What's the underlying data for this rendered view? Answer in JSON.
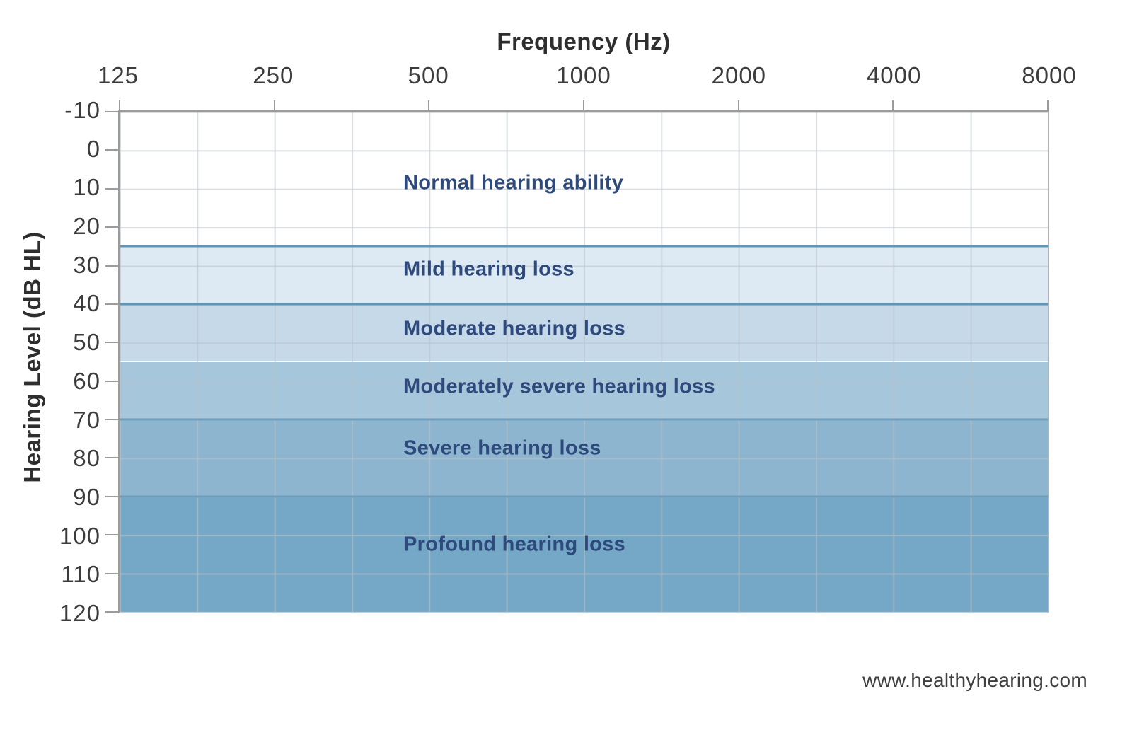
{
  "page": {
    "background": "#ffffff",
    "watermark": "www.healthyhearing.com"
  },
  "chart_data": {
    "type": "area",
    "title": "Frequency (Hz)",
    "xlabel": "Frequency (Hz)",
    "ylabel": "Hearing Level (dB HL)",
    "x_axis": {
      "position": "top",
      "scale": "octave",
      "tick_labels": [
        "125",
        "250",
        "500",
        "1000",
        "2000",
        "4000",
        "8000"
      ],
      "gridlines_per_octave": 2
    },
    "y_axis": {
      "min": -10,
      "max": 120,
      "step": 10,
      "inverted": true,
      "tick_labels": [
        "-10",
        "0",
        "10",
        "20",
        "30",
        "40",
        "50",
        "60",
        "70",
        "80",
        "90",
        "100",
        "110",
        "120"
      ]
    },
    "grid": true,
    "legend": "none",
    "label_color": "#2e4a7c",
    "axis_color": "#9b9b9b",
    "boundary_stroke_color": "#5e96b8",
    "bands": [
      {
        "label": "Normal hearing ability",
        "db_from": -10,
        "db_to": 25,
        "color": "#ffffff",
        "top_stroke": "",
        "label_db": 8.5
      },
      {
        "label": "Mild hearing loss",
        "db_from": 25,
        "db_to": 40,
        "color": "#dde9f3",
        "top_stroke": "#5e96b8",
        "label_db": 31
      },
      {
        "label": "Moderate hearing loss",
        "db_from": 40,
        "db_to": 55,
        "color": "#c5d9e9",
        "top_stroke": "#5e96b8",
        "label_db": 46.5
      },
      {
        "label": "Moderately severe hearing loss",
        "db_from": 55,
        "db_to": 70,
        "color": "#a6c6db",
        "top_stroke": "",
        "label_db": 61.5
      },
      {
        "label": "Severe hearing loss",
        "db_from": 70,
        "db_to": 90,
        "color": "#8db5cf",
        "top_stroke": "#6e9cba",
        "label_db": 77.5
      },
      {
        "label": "Profound hearing loss",
        "db_from": 90,
        "db_to": 120,
        "color": "#75a8c6",
        "top_stroke": "#6e9cba",
        "label_db": 102.5
      }
    ],
    "source": "www.healthyhearing.com"
  }
}
